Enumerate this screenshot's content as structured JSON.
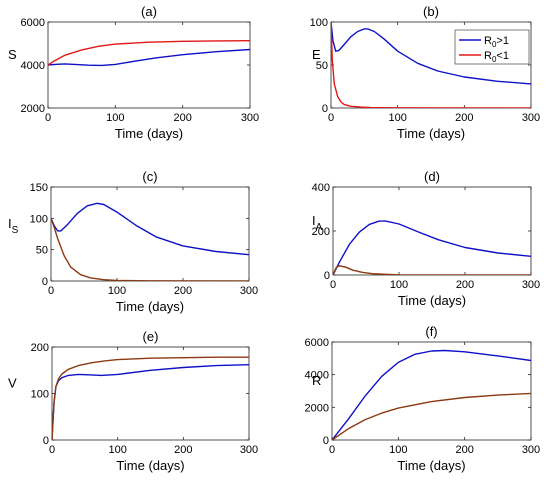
{
  "colors": {
    "r0_gt_1": "#1010c8",
    "r0_lt_1": "#e01818",
    "r0_lt_1_dark": "#8b3a12"
  },
  "legend": {
    "panel": "b",
    "entries": [
      "R0>1",
      "R0<1"
    ]
  },
  "chart_data": [
    {
      "id": "a",
      "type": "line",
      "title": "(a)",
      "xlabel": "Time (days)",
      "ylabel": "S",
      "xlim": [
        0,
        300
      ],
      "ylim": [
        2000,
        6000
      ],
      "xticks": [
        0,
        100,
        200,
        300
      ],
      "yticks": [
        2000,
        4000,
        6000
      ],
      "series": [
        {
          "name": "R0>1",
          "color": "#1010c8",
          "x": [
            0,
            10,
            25,
            40,
            60,
            80,
            100,
            130,
            160,
            200,
            250,
            300
          ],
          "y": [
            4000,
            4030,
            4050,
            4030,
            3990,
            3980,
            4030,
            4180,
            4330,
            4480,
            4620,
            4720
          ]
        },
        {
          "name": "R0<1",
          "color": "#e01818",
          "x": [
            0,
            10,
            25,
            50,
            75,
            100,
            150,
            200,
            250,
            300
          ],
          "y": [
            4000,
            4200,
            4450,
            4700,
            4870,
            4970,
            5060,
            5100,
            5120,
            5130
          ]
        }
      ]
    },
    {
      "id": "b",
      "type": "line",
      "title": "(b)",
      "xlabel": "Time (days)",
      "ylabel": "E",
      "xlim": [
        0,
        300
      ],
      "ylim": [
        0,
        100
      ],
      "xticks": [
        0,
        100,
        200,
        300
      ],
      "yticks": [
        0,
        50,
        100
      ],
      "series": [
        {
          "name": "R0>1",
          "color": "#1010c8",
          "x": [
            0,
            3,
            7,
            12,
            20,
            30,
            40,
            50,
            55,
            65,
            80,
            100,
            130,
            160,
            200,
            250,
            300
          ],
          "y": [
            100,
            78,
            66,
            67,
            74,
            83,
            89,
            92,
            92,
            89,
            80,
            66,
            52,
            43,
            36,
            31,
            28
          ]
        },
        {
          "name": "R0<1",
          "color": "#e01818",
          "x": [
            0,
            2,
            5,
            10,
            15,
            20,
            30,
            45,
            60,
            100,
            300
          ],
          "y": [
            100,
            55,
            28,
            13,
            7,
            4,
            2,
            1,
            0.5,
            0.2,
            0
          ]
        }
      ]
    },
    {
      "id": "c",
      "type": "line",
      "title": "(c)",
      "xlabel": "Time (days)",
      "ylabel": "I_S",
      "xlim": [
        0,
        300
      ],
      "ylim": [
        0,
        150
      ],
      "xticks": [
        0,
        100,
        200,
        300
      ],
      "yticks": [
        0,
        50,
        100,
        150
      ],
      "series": [
        {
          "name": "R0>1",
          "color": "#1010c8",
          "x": [
            0,
            5,
            10,
            15,
            25,
            40,
            55,
            70,
            80,
            100,
            130,
            160,
            200,
            250,
            300
          ],
          "y": [
            100,
            88,
            80,
            80,
            90,
            108,
            120,
            124,
            122,
            110,
            88,
            70,
            56,
            47,
            42
          ]
        },
        {
          "name": "R0<1",
          "color": "#8b3a12",
          "x": [
            0,
            5,
            10,
            20,
            30,
            45,
            60,
            80,
            100,
            150,
            300
          ],
          "y": [
            100,
            85,
            68,
            40,
            22,
            10,
            5,
            2,
            1,
            0.3,
            0
          ]
        }
      ]
    },
    {
      "id": "d",
      "type": "line",
      "title": "(d)",
      "xlabel": "Time (days)",
      "ylabel": "I_A",
      "xlim": [
        0,
        300
      ],
      "ylim": [
        0,
        400
      ],
      "xticks": [
        0,
        100,
        200,
        300
      ],
      "yticks": [
        0,
        200,
        400
      ],
      "series": [
        {
          "name": "R0>1",
          "color": "#1010c8",
          "x": [
            0,
            10,
            25,
            40,
            55,
            70,
            80,
            100,
            130,
            160,
            200,
            250,
            300
          ],
          "y": [
            0,
            60,
            140,
            195,
            230,
            245,
            245,
            232,
            195,
            160,
            125,
            100,
            85
          ]
        },
        {
          "name": "R0<1",
          "color": "#8b3a12",
          "x": [
            0,
            5,
            10,
            20,
            30,
            45,
            60,
            80,
            100,
            150,
            300
          ],
          "y": [
            0,
            35,
            42,
            35,
            22,
            12,
            6,
            3,
            1,
            0.3,
            0
          ]
        }
      ]
    },
    {
      "id": "e",
      "type": "line",
      "title": "(e)",
      "xlabel": "Time (days)",
      "ylabel": "V",
      "xlim": [
        0,
        300
      ],
      "ylim": [
        0,
        200
      ],
      "xticks": [
        0,
        100,
        200,
        300
      ],
      "yticks": [
        0,
        100,
        200
      ],
      "series": [
        {
          "name": "R0>1",
          "color": "#1010c8",
          "x": [
            0,
            3,
            6,
            10,
            15,
            25,
            40,
            60,
            75,
            100,
            150,
            200,
            250,
            300
          ],
          "y": [
            0,
            80,
            115,
            128,
            134,
            139,
            141,
            140,
            139,
            141,
            150,
            156,
            160,
            162
          ]
        },
        {
          "name": "R0<1",
          "color": "#8b3a12",
          "x": [
            0,
            3,
            6,
            10,
            15,
            25,
            40,
            60,
            80,
            100,
            150,
            200,
            250,
            300
          ],
          "y": [
            0,
            80,
            115,
            132,
            142,
            152,
            160,
            166,
            170,
            173,
            176,
            177,
            178,
            178
          ]
        }
      ]
    },
    {
      "id": "f",
      "type": "line",
      "title": "(f)",
      "xlabel": "Time (days)",
      "ylabel": "R",
      "xlim": [
        0,
        300
      ],
      "ylim": [
        0,
        6000
      ],
      "xticks": [
        0,
        100,
        200,
        300
      ],
      "yticks": [
        0,
        2000,
        4000,
        6000
      ],
      "series": [
        {
          "name": "R0>1",
          "color": "#1010c8",
          "x": [
            0,
            25,
            50,
            75,
            100,
            125,
            150,
            170,
            200,
            250,
            300
          ],
          "y": [
            0,
            1300,
            2700,
            3900,
            4750,
            5250,
            5450,
            5480,
            5400,
            5150,
            4870
          ]
        },
        {
          "name": "R0<1",
          "color": "#8b3a12",
          "x": [
            0,
            25,
            50,
            75,
            100,
            150,
            200,
            250,
            300
          ],
          "y": [
            0,
            700,
            1250,
            1650,
            1950,
            2350,
            2600,
            2750,
            2850
          ]
        }
      ]
    }
  ]
}
